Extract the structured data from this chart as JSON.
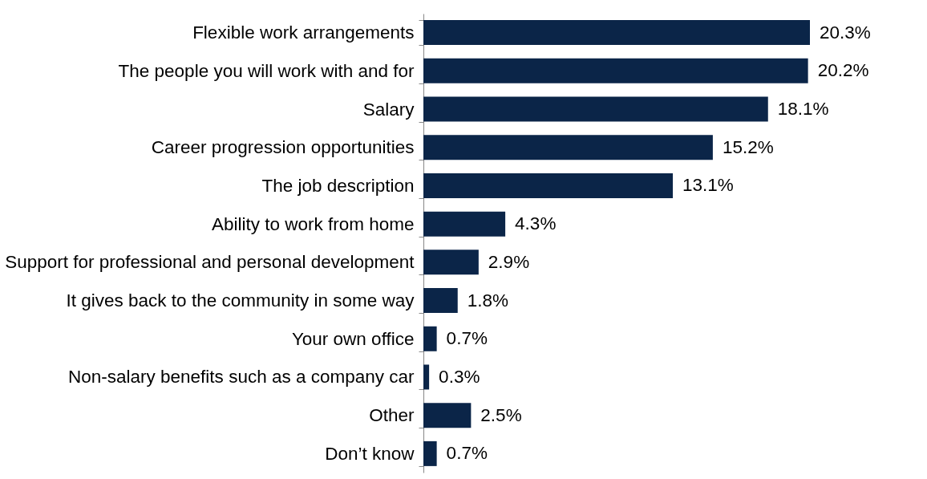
{
  "chart_data": {
    "type": "bar",
    "orientation": "horizontal",
    "color": "#0b2548",
    "categories": [
      "Flexible work arrangements",
      "The people you will work with and for",
      "Salary",
      "Career progression opportunities",
      "The job description",
      "Ability to work from home",
      "Support for professional and personal development",
      "It gives back to the community in some way",
      "Your own office",
      "Non-salary benefits such as a company car",
      "Other",
      "Don’t know"
    ],
    "values": [
      20.3,
      20.2,
      18.1,
      15.2,
      13.1,
      4.3,
      2.9,
      1.8,
      0.7,
      0.3,
      2.5,
      0.7
    ],
    "value_labels": [
      "20.3%",
      "20.2%",
      "18.1%",
      "15.2%",
      "13.1%",
      "4.3%",
      "2.9%",
      "1.8%",
      "0.7%",
      "0.3%",
      "2.5%",
      "0.7%"
    ]
  }
}
